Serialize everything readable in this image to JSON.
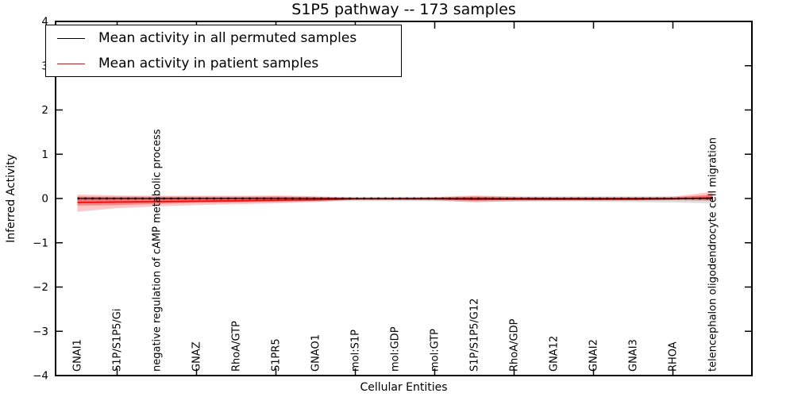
{
  "chart_data": {
    "type": "line",
    "title": "S1P5 pathway -- 173 samples",
    "xlabel": "Cellular Entities",
    "ylabel": "Inferred Activity",
    "sample_count_in_title": 173,
    "ylim": [
      -4,
      4
    ],
    "yticks": [
      -4,
      -3,
      -2,
      -1,
      0,
      1,
      2,
      3,
      4
    ],
    "x_major_tick_indices": [
      1,
      3,
      5,
      7,
      9,
      11,
      13,
      15
    ],
    "grid": false,
    "legend_position": "upper left",
    "categories": [
      "GNAI1",
      "S1P/S1P5/Gi",
      "negative regulation of cAMP metabolic process",
      "GNAZ",
      "RhoA/GTP",
      "S1PR5",
      "GNAO1",
      "mol:S1P",
      "mol:GDP",
      "mol:GTP",
      "S1P/S1P5/G12",
      "RhoA/GDP",
      "GNA12",
      "GNAI2",
      "GNAI3",
      "RHOA",
      "telencephalon oligodendrocyte cell migration"
    ],
    "series": [
      {
        "name": "Mean activity in all permuted samples",
        "color": "#000000",
        "line_style": "solid-with-dots",
        "values": [
          0,
          0,
          0,
          0,
          0,
          0,
          0,
          0,
          0,
          0,
          0,
          0,
          0,
          0,
          0,
          0,
          0
        ],
        "band_color": "#bbbbbb",
        "band_upper": [
          0.05,
          0.05,
          0.05,
          0.05,
          0.05,
          0.05,
          0.04,
          0.04,
          0.04,
          0.04,
          0.05,
          0.05,
          0.05,
          0.05,
          0.05,
          0.05,
          0.05
        ],
        "band_lower": [
          -0.1,
          -0.1,
          -0.09,
          -0.09,
          -0.08,
          -0.08,
          -0.07,
          -0.06,
          -0.06,
          -0.06,
          -0.07,
          -0.07,
          -0.07,
          -0.07,
          -0.08,
          -0.09,
          -0.11
        ]
      },
      {
        "name": "Mean activity in patient samples",
        "color": "#ff0000",
        "line_style": "solid",
        "values": [
          -0.09,
          -0.08,
          -0.07,
          -0.06,
          -0.05,
          -0.04,
          -0.03,
          -0.01,
          -0.01,
          -0.01,
          -0.02,
          -0.02,
          -0.02,
          -0.02,
          -0.02,
          -0.01,
          0.02
        ],
        "band_color": "#ff0000",
        "band_upper": [
          0.09,
          0.07,
          0.06,
          0.06,
          0.06,
          0.07,
          0.05,
          0.02,
          0.02,
          0.03,
          0.07,
          0.04,
          0.03,
          0.03,
          0.03,
          0.04,
          0.15
        ],
        "band_lower": [
          -0.3,
          -0.22,
          -0.18,
          -0.15,
          -0.13,
          -0.11,
          -0.08,
          -0.03,
          -0.03,
          -0.04,
          -0.09,
          -0.06,
          -0.05,
          -0.05,
          -0.05,
          -0.04,
          -0.06
        ],
        "inner_band_upper": [
          0.04,
          0.03,
          0.03,
          0.03,
          0.03,
          0.04,
          0.03,
          0.01,
          0.01,
          0.02,
          0.04,
          0.02,
          0.02,
          0.02,
          0.02,
          0.02,
          0.09
        ],
        "inner_band_lower": [
          -0.16,
          -0.15,
          -0.12,
          -0.1,
          -0.09,
          -0.07,
          -0.05,
          -0.02,
          -0.02,
          -0.02,
          -0.05,
          -0.03,
          -0.03,
          -0.03,
          -0.03,
          -0.02,
          -0.03
        ]
      }
    ]
  }
}
